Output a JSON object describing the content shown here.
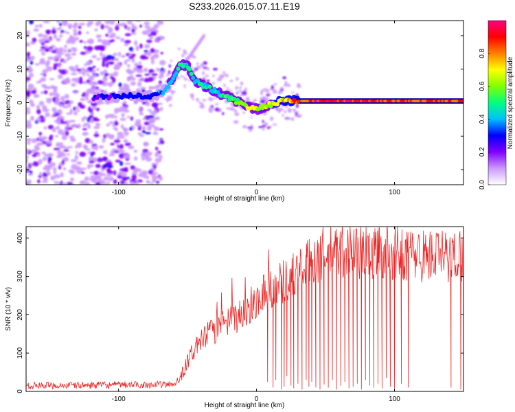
{
  "title": "S233.2026.015.07.11.E19",
  "chart_data": [
    {
      "type": "heatmap",
      "name": "spectrogram",
      "xlabel": "Height of straight line (km)",
      "ylabel": "Frequency (Hz)",
      "xlim": [
        -167,
        150
      ],
      "ylim": [
        -24.5,
        24.5
      ],
      "xticks": [
        -100,
        0,
        100
      ],
      "xtick_labels": [
        "-100",
        "0",
        "100"
      ],
      "yticks": [
        -20,
        -10,
        0,
        10,
        20
      ],
      "ytick_labels": [
        "-20",
        "-10",
        "0",
        "10",
        "20"
      ],
      "colorbar": {
        "label": "Normalized spectral amplitude",
        "range": [
          0.0,
          1.0
        ],
        "ticks": [
          0.0,
          0.2,
          0.4,
          0.6,
          0.8
        ],
        "tick_labels": [
          "0.0",
          "0.2",
          "0.4",
          "0.6",
          "0.8"
        ],
        "colors": [
          "#ffffff",
          "#cc99ff",
          "#8000ff",
          "#0000ff",
          "#00c0ff",
          "#00ff80",
          "#80ff00",
          "#ffff00",
          "#ff8000",
          "#ff0000",
          "#ff0080"
        ]
      },
      "ridge": {
        "x": [
          -118,
          -95,
          -75,
          -68,
          -60,
          -55,
          -50,
          -45,
          -35,
          -25,
          -15,
          -8,
          0,
          10,
          20,
          30,
          50,
          80,
          100,
          120,
          150
        ],
        "y": [
          1.5,
          2.0,
          2.0,
          3.0,
          7.0,
          11.5,
          11.0,
          6.5,
          4.5,
          2.5,
          0.5,
          -1.0,
          -2.0,
          -0.5,
          0.5,
          0.5,
          0.5,
          0.5,
          0.5,
          0.5,
          0.5
        ],
        "amplitude": [
          0.25,
          0.3,
          0.3,
          0.4,
          0.45,
          0.55,
          0.5,
          0.45,
          0.5,
          0.5,
          0.6,
          0.65,
          0.7,
          0.7,
          0.75,
          0.9,
          0.95,
          0.95,
          0.9,
          0.9,
          0.9
        ]
      },
      "noise_region_x": [
        -167,
        -68
      ],
      "side_band": {
        "x": [
          -55,
          -38
        ],
        "y": [
          10,
          20
        ]
      }
    },
    {
      "type": "line",
      "name": "snr",
      "xlabel": "Height of straight line (km)",
      "ylabel": "SNR (10 * v/v)",
      "xlim": [
        -167,
        150
      ],
      "ylim": [
        0,
        430
      ],
      "xticks": [
        -100,
        0,
        100
      ],
      "xtick_labels": [
        "-100",
        "0",
        "100"
      ],
      "yticks": [
        0,
        100,
        200,
        300,
        400
      ],
      "ytick_labels": [
        "0",
        "100",
        "200",
        "300",
        "400"
      ],
      "series": [
        {
          "name": "SNR",
          "color": "#ee2222",
          "envelope_x": [
            -167,
            -60,
            -55,
            -45,
            -35,
            -25,
            -15,
            -5,
            5,
            15,
            25,
            35,
            40,
            50,
            60,
            70,
            80,
            90,
            100,
            110,
            120,
            130,
            140,
            150
          ],
          "envelope_y": [
            15,
            18,
            40,
            110,
            150,
            170,
            190,
            220,
            260,
            280,
            300,
            320,
            345,
            360,
            365,
            370,
            360,
            365,
            360,
            360,
            355,
            355,
            350,
            360
          ],
          "dropouts_x": [
            8,
            12,
            14,
            18,
            20,
            22,
            25,
            27,
            30,
            33,
            36,
            38,
            40,
            43,
            46,
            49,
            52,
            55,
            58,
            61,
            64,
            67,
            70,
            73,
            76,
            79,
            82,
            85,
            88,
            91,
            94,
            97,
            100,
            105,
            110,
            141,
            148
          ],
          "dropouts_y": [
            25,
            10,
            30,
            5,
            12,
            40,
            15,
            8,
            20,
            5,
            30,
            12,
            25,
            10,
            5,
            18,
            10,
            30,
            5,
            15,
            25,
            8,
            12,
            20,
            5,
            30,
            15,
            10,
            20,
            8,
            35,
            12,
            8,
            20,
            10,
            10,
            5
          ]
        }
      ]
    }
  ]
}
